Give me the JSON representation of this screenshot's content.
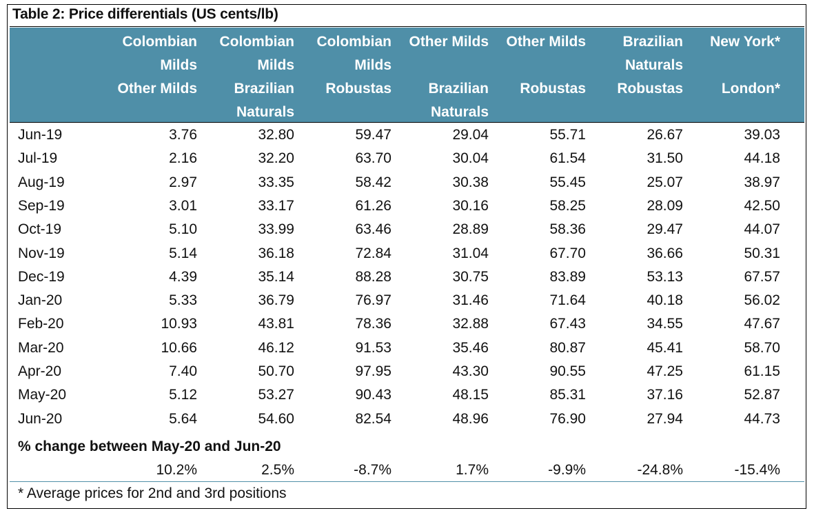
{
  "title": "Table 2: Price differentials (US cents/lb)",
  "headers": [
    [
      "Colombian",
      "Milds",
      "Other Milds",
      ""
    ],
    [
      "Colombian",
      "Milds",
      "Brazilian",
      "Naturals"
    ],
    [
      "Colombian",
      "Milds",
      "Robustas",
      ""
    ],
    [
      "Other Milds",
      "",
      "Brazilian",
      "Naturals"
    ],
    [
      "Other Milds",
      "",
      "Robustas",
      ""
    ],
    [
      "Brazilian",
      "Naturals",
      "Robustas",
      ""
    ],
    [
      "New York*",
      "",
      "London*",
      ""
    ]
  ],
  "rows": [
    {
      "label": "Jun-19",
      "values": [
        "3.76",
        "32.80",
        "59.47",
        "29.04",
        "55.71",
        "26.67",
        "39.03"
      ]
    },
    {
      "label": "Jul-19",
      "values": [
        "2.16",
        "32.20",
        "63.70",
        "30.04",
        "61.54",
        "31.50",
        "44.18"
      ]
    },
    {
      "label": "Aug-19",
      "values": [
        "2.97",
        "33.35",
        "58.42",
        "30.38",
        "55.45",
        "25.07",
        "38.97"
      ]
    },
    {
      "label": "Sep-19",
      "values": [
        "3.01",
        "33.17",
        "61.26",
        "30.16",
        "58.25",
        "28.09",
        "42.50"
      ]
    },
    {
      "label": "Oct-19",
      "values": [
        "5.10",
        "33.99",
        "63.46",
        "28.89",
        "58.36",
        "29.47",
        "44.07"
      ]
    },
    {
      "label": "Nov-19",
      "values": [
        "5.14",
        "36.18",
        "72.84",
        "31.04",
        "67.70",
        "36.66",
        "50.31"
      ]
    },
    {
      "label": "Dec-19",
      "values": [
        "4.39",
        "35.14",
        "88.28",
        "30.75",
        "83.89",
        "53.13",
        "67.57"
      ]
    },
    {
      "label": "Jan-20",
      "values": [
        "5.33",
        "36.79",
        "76.97",
        "31.46",
        "71.64",
        "40.18",
        "56.02"
      ]
    },
    {
      "label": "Feb-20",
      "values": [
        "10.93",
        "43.81",
        "78.36",
        "32.88",
        "67.43",
        "34.55",
        "47.67"
      ]
    },
    {
      "label": "Mar-20",
      "values": [
        "10.66",
        "46.12",
        "91.53",
        "35.46",
        "80.87",
        "45.41",
        "58.70"
      ]
    },
    {
      "label": "Apr-20",
      "values": [
        "7.40",
        "50.70",
        "97.95",
        "43.30",
        "90.55",
        "47.25",
        "61.15"
      ]
    },
    {
      "label": "May-20",
      "values": [
        "5.12",
        "53.27",
        "90.43",
        "48.15",
        "85.31",
        "37.16",
        "52.87"
      ]
    },
    {
      "label": "Jun-20",
      "values": [
        "5.64",
        "54.60",
        "82.54",
        "48.96",
        "76.90",
        "27.94",
        "44.73"
      ]
    }
  ],
  "pct_change": {
    "title": "% change between May-20 and Jun-20",
    "values": [
      "10.2%",
      "2.5%",
      "-8.7%",
      "1.7%",
      "-9.9%",
      "-24.8%",
      "-15.4%"
    ]
  },
  "footnote": "* Average prices for 2nd and 3rd positions",
  "colors": {
    "header_bg": "#4f8fa8",
    "header_text": "#ffffff"
  }
}
